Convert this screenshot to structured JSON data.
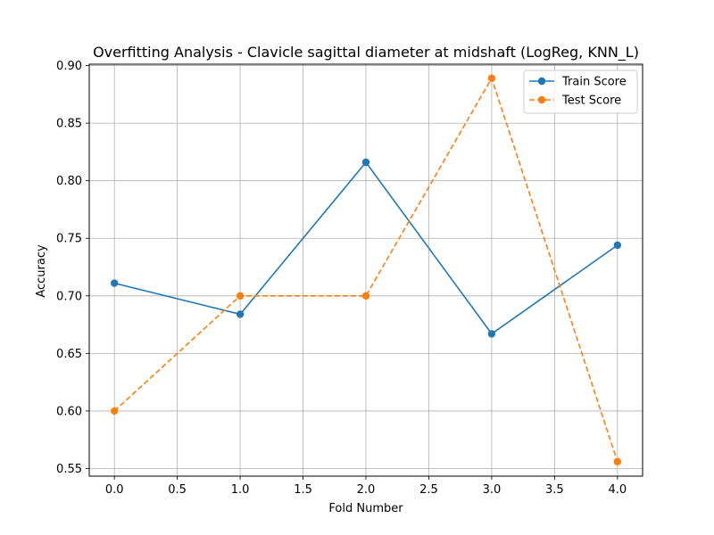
{
  "chart_data": {
    "type": "line",
    "title": "Overfitting Analysis - Clavicle sagittal diameter at midshaft (LogReg, KNN_L)",
    "xlabel": "Fold Number",
    "ylabel": "Accuracy",
    "x": [
      0,
      1,
      2,
      3,
      4
    ],
    "xlim": [
      -0.2,
      4.2
    ],
    "ylim": [
      0.5434,
      0.9012
    ],
    "xticks": [
      0.0,
      0.5,
      1.0,
      1.5,
      2.0,
      2.5,
      3.0,
      3.5,
      4.0
    ],
    "xtick_labels": [
      "0.0",
      "0.5",
      "1.0",
      "1.5",
      "2.0",
      "2.5",
      "3.0",
      "3.5",
      "4.0"
    ],
    "yticks": [
      0.55,
      0.6,
      0.65,
      0.7,
      0.75,
      0.8,
      0.85,
      0.9
    ],
    "ytick_labels": [
      "0.55",
      "0.60",
      "0.65",
      "0.70",
      "0.75",
      "0.80",
      "0.85",
      "0.90"
    ],
    "grid": true,
    "legend_position": "top-right",
    "series": [
      {
        "name": "Train Score",
        "values": [
          0.711,
          0.684,
          0.816,
          0.667,
          0.744
        ],
        "color": "#1f77b4",
        "line_style": "solid",
        "marker": "circle"
      },
      {
        "name": "Test Score",
        "values": [
          0.6,
          0.7,
          0.7,
          0.889,
          0.556
        ],
        "color": "#ff7f0e",
        "line_style": "dashed",
        "marker": "circle"
      }
    ]
  }
}
